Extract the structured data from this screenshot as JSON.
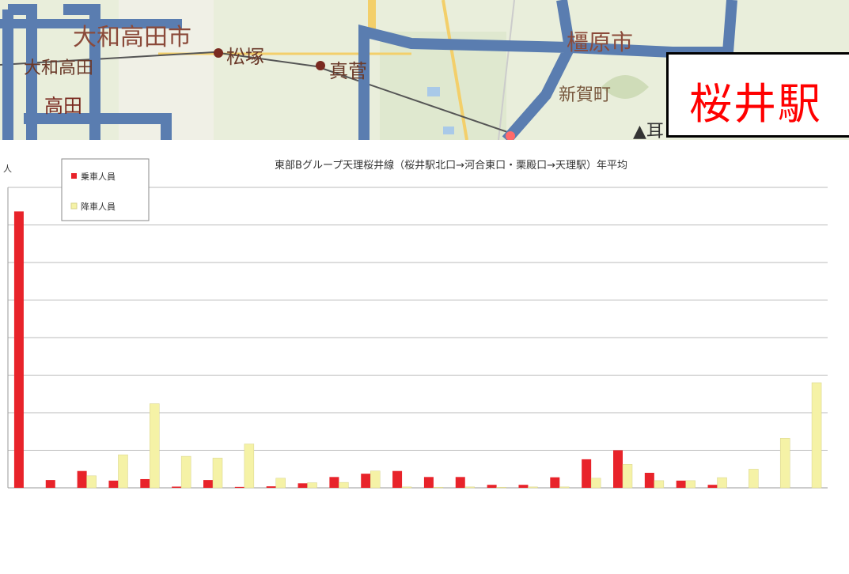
{
  "map": {
    "labels": [
      {
        "text": "大和高田市",
        "kind": "city"
      },
      {
        "text": "大和高田",
        "kind": "station"
      },
      {
        "text": "松塚",
        "kind": "station"
      },
      {
        "text": "真菅",
        "kind": "station"
      },
      {
        "text": "橿原市",
        "kind": "city"
      },
      {
        "text": "新賀町",
        "kind": "town"
      },
      {
        "text": "▲耳",
        "kind": "mountain"
      },
      {
        "text": "高田",
        "kind": "station"
      }
    ],
    "route_color": "#5a7db0"
  },
  "station_label": "桜井駅",
  "chart_data": {
    "type": "bar",
    "title": "東部Bグループ天理桜井線（桜井駅北口→河合東口・栗殿口→天理駅）年平均",
    "ylabel": "人",
    "ylim": [
      0,
      100
    ],
    "grid": true,
    "legend_position": "top-left",
    "categories": [
      "",
      "",
      "",
      "",
      "",
      "",
      "",
      "",
      "",
      "",
      "",
      "",
      "",
      "",
      "",
      "",
      "",
      "",
      "",
      "",
      "",
      "",
      "",
      "",
      "",
      ""
    ],
    "series": [
      {
        "name": "乗車人員",
        "color": "#e8232a",
        "values": [
          92,
          2.6,
          5.6,
          2.4,
          2.9,
          0.4,
          2.6,
          0.3,
          0.5,
          1.5,
          3.6,
          4.7,
          5.6,
          3.6,
          3.6,
          1.0,
          1.0,
          3.5,
          9.5,
          12.5,
          5.0,
          2.4,
          1.0,
          0,
          0,
          0
        ]
      },
      {
        "name": "降車人員",
        "color": "#f5f2a6",
        "values": [
          0,
          0,
          4.0,
          11.0,
          28.0,
          10.5,
          9.9,
          14.6,
          3.2,
          1.7,
          1.8,
          5.6,
          0.3,
          0.2,
          0.3,
          0.2,
          0.3,
          0.3,
          3.2,
          7.8,
          2.4,
          2.4,
          3.4,
          6.2,
          16.5,
          35.0
        ]
      }
    ],
    "colors": {
      "axis": "#999999",
      "grid": "#bbbbbb"
    }
  }
}
